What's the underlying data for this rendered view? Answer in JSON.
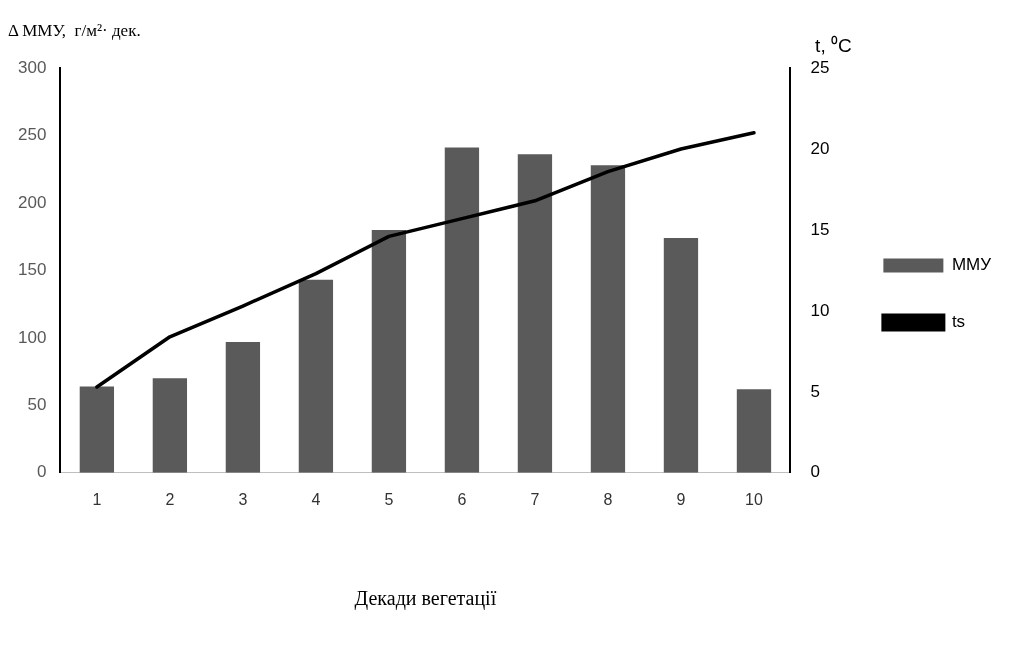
{
  "chart_data": {
    "type": "bar",
    "ylabel": "Δ ММУ,  г/м²· дек.",
    "y2label": "t, ⁰C",
    "xlabel": "Декади вегетації",
    "categories": [
      "1",
      "2",
      "3",
      "4",
      "5",
      "6",
      "7",
      "8",
      "9",
      "10"
    ],
    "series": [
      {
        "name": "ММУ",
        "color": "#5a5a5a",
        "values": [
          64,
          70,
          97,
          143,
          180,
          241,
          236,
          228,
          174,
          62
        ]
      },
      {
        "name": "ts",
        "type": "line",
        "axis": "y2",
        "color": "#000000",
        "values": [
          5.3,
          8.4,
          10.3,
          12.3,
          14.6,
          15.7,
          16.8,
          18.6,
          20.0,
          21.0
        ]
      }
    ],
    "ylim": [
      0,
      300
    ],
    "yticks": [
      0,
      50,
      100,
      150,
      200,
      250,
      300
    ],
    "y2lim": [
      0,
      25
    ],
    "y2ticks": [
      0,
      5,
      10,
      15,
      20,
      25
    ],
    "grid": false,
    "legend": "right",
    "marker": "none"
  }
}
